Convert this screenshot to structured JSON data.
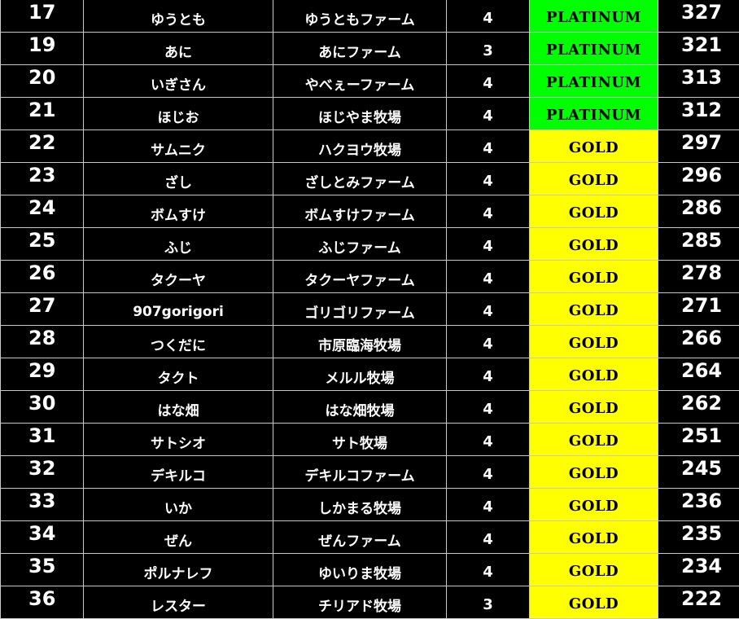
{
  "colors": {
    "PLATINUM": "#00ff00",
    "GOLD": "#ffff00",
    "grid": "#c8c8c8",
    "background": "#000000"
  },
  "rows": [
    {
      "rank": "17",
      "name": "ゆうとも",
      "farm": "ゆうともファーム",
      "num": "4",
      "tier": "PLATINUM",
      "score": "327"
    },
    {
      "rank": "19",
      "name": "あに",
      "farm": "あにファーム",
      "num": "3",
      "tier": "PLATINUM",
      "score": "321"
    },
    {
      "rank": "20",
      "name": "いぎさん",
      "farm": "やべぇーファーム",
      "num": "4",
      "tier": "PLATINUM",
      "score": "313"
    },
    {
      "rank": "21",
      "name": "ほじお",
      "farm": "ほじやま牧場",
      "num": "4",
      "tier": "PLATINUM",
      "score": "312"
    },
    {
      "rank": "22",
      "name": "サムニク",
      "farm": "ハクヨウ牧場",
      "num": "4",
      "tier": "GOLD",
      "score": "297"
    },
    {
      "rank": "23",
      "name": "ざし",
      "farm": "ざしとみファーム",
      "num": "4",
      "tier": "GOLD",
      "score": "296"
    },
    {
      "rank": "24",
      "name": "ボムすけ",
      "farm": "ボムすけファーム",
      "num": "4",
      "tier": "GOLD",
      "score": "286"
    },
    {
      "rank": "25",
      "name": "ふじ",
      "farm": "ふじファーム",
      "num": "4",
      "tier": "GOLD",
      "score": "285"
    },
    {
      "rank": "26",
      "name": "タクーヤ",
      "farm": "タクーヤファーム",
      "num": "4",
      "tier": "GOLD",
      "score": "278"
    },
    {
      "rank": "27",
      "name": "907gorigori",
      "farm": "ゴリゴリファーム",
      "num": "4",
      "tier": "GOLD",
      "score": "271"
    },
    {
      "rank": "28",
      "name": "つくだに",
      "farm": "市原臨海牧場",
      "num": "4",
      "tier": "GOLD",
      "score": "266"
    },
    {
      "rank": "29",
      "name": "タクト",
      "farm": "メルル牧場",
      "num": "4",
      "tier": "GOLD",
      "score": "264"
    },
    {
      "rank": "30",
      "name": "はな畑",
      "farm": "はな畑牧場",
      "num": "4",
      "tier": "GOLD",
      "score": "262"
    },
    {
      "rank": "31",
      "name": "サトシオ",
      "farm": "サト牧場",
      "num": "4",
      "tier": "GOLD",
      "score": "251"
    },
    {
      "rank": "32",
      "name": "デキルコ",
      "farm": "デキルコファーム",
      "num": "4",
      "tier": "GOLD",
      "score": "245"
    },
    {
      "rank": "33",
      "name": "いか",
      "farm": "しかまる牧場",
      "num": "4",
      "tier": "GOLD",
      "score": "236"
    },
    {
      "rank": "34",
      "name": "ぜん",
      "farm": "ぜんファーム",
      "num": "4",
      "tier": "GOLD",
      "score": "235"
    },
    {
      "rank": "35",
      "name": "ポルナレフ",
      "farm": "ゆいりま牧場",
      "num": "4",
      "tier": "GOLD",
      "score": "234"
    },
    {
      "rank": "36",
      "name": "レスター",
      "farm": "チリアド牧場",
      "num": "3",
      "tier": "GOLD",
      "score": "222"
    }
  ]
}
